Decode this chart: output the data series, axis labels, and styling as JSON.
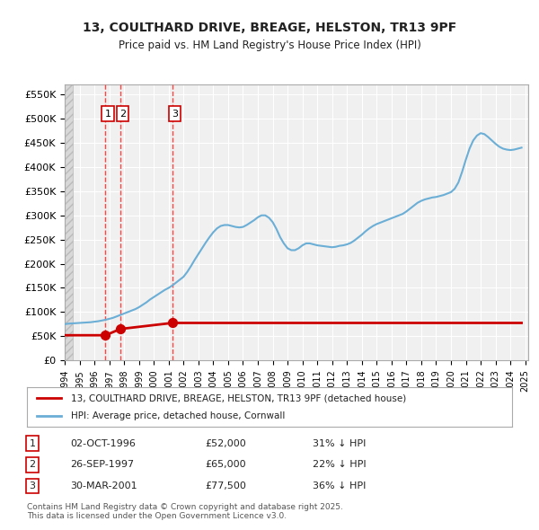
{
  "title_line1": "13, COULTHARD DRIVE, BREAGE, HELSTON, TR13 9PF",
  "title_line2": "Price paid vs. HM Land Registry's House Price Index (HPI)",
  "ylabel": "",
  "ylim": [
    0,
    570000
  ],
  "yticks": [
    0,
    50000,
    100000,
    150000,
    200000,
    250000,
    300000,
    350000,
    400000,
    450000,
    500000,
    550000
  ],
  "ytick_labels": [
    "£0",
    "£50K",
    "£100K",
    "£150K",
    "£200K",
    "£250K",
    "£300K",
    "£350K",
    "£400K",
    "£450K",
    "£500K",
    "£550K"
  ],
  "hpi_color": "#6baed6",
  "price_color": "#cc0000",
  "vline_color": "#ff4444",
  "background_color": "#ffffff",
  "plot_bg_color": "#f0f0f0",
  "grid_color": "#ffffff",
  "transaction_dates": [
    "1996-10-02",
    "1997-09-26",
    "2001-03-30"
  ],
  "transaction_prices": [
    52000,
    65000,
    77500
  ],
  "transaction_labels": [
    "1",
    "2",
    "3"
  ],
  "legend_label_price": "13, COULTHARD DRIVE, BREAGE, HELSTON, TR13 9PF (detached house)",
  "legend_label_hpi": "HPI: Average price, detached house, Cornwall",
  "table_entries": [
    {
      "num": "1",
      "date": "02-OCT-1996",
      "price": "£52,000",
      "note": "31% ↓ HPI"
    },
    {
      "num": "2",
      "date": "26-SEP-1997",
      "price": "£65,000",
      "note": "22% ↓ HPI"
    },
    {
      "num": "3",
      "date": "30-MAR-2001",
      "price": "£77,500",
      "note": "36% ↓ HPI"
    }
  ],
  "footer": "Contains HM Land Registry data © Crown copyright and database right 2025.\nThis data is licensed under the Open Government Licence v3.0.",
  "hpi_x": [
    1994.0,
    1994.25,
    1994.5,
    1994.75,
    1995.0,
    1995.25,
    1995.5,
    1995.75,
    1996.0,
    1996.25,
    1996.5,
    1996.75,
    1997.0,
    1997.25,
    1997.5,
    1997.75,
    1998.0,
    1998.25,
    1998.5,
    1998.75,
    1999.0,
    1999.25,
    1999.5,
    1999.75,
    2000.0,
    2000.25,
    2000.5,
    2000.75,
    2001.0,
    2001.25,
    2001.5,
    2001.75,
    2002.0,
    2002.25,
    2002.5,
    2002.75,
    2003.0,
    2003.25,
    2003.5,
    2003.75,
    2004.0,
    2004.25,
    2004.5,
    2004.75,
    2005.0,
    2005.25,
    2005.5,
    2005.75,
    2006.0,
    2006.25,
    2006.5,
    2006.75,
    2007.0,
    2007.25,
    2007.5,
    2007.75,
    2008.0,
    2008.25,
    2008.5,
    2008.75,
    2009.0,
    2009.25,
    2009.5,
    2009.75,
    2010.0,
    2010.25,
    2010.5,
    2010.75,
    2011.0,
    2011.25,
    2011.5,
    2011.75,
    2012.0,
    2012.25,
    2012.5,
    2012.75,
    2013.0,
    2013.25,
    2013.5,
    2013.75,
    2014.0,
    2014.25,
    2014.5,
    2014.75,
    2015.0,
    2015.25,
    2015.5,
    2015.75,
    2016.0,
    2016.25,
    2016.5,
    2016.75,
    2017.0,
    2017.25,
    2017.5,
    2017.75,
    2018.0,
    2018.25,
    2018.5,
    2018.75,
    2019.0,
    2019.25,
    2019.5,
    2019.75,
    2020.0,
    2020.25,
    2020.5,
    2020.75,
    2021.0,
    2021.25,
    2021.5,
    2021.75,
    2022.0,
    2022.25,
    2022.5,
    2022.75,
    2023.0,
    2023.25,
    2023.5,
    2023.75,
    2024.0,
    2024.25,
    2024.5,
    2024.75
  ],
  "hpi_y": [
    75000,
    76000,
    76500,
    77000,
    77500,
    78000,
    78500,
    79000,
    80000,
    81000,
    82500,
    84000,
    86000,
    88000,
    91000,
    94000,
    97000,
    100000,
    103000,
    106000,
    110000,
    115000,
    120000,
    126000,
    131000,
    136000,
    141000,
    146000,
    150000,
    155000,
    161000,
    167000,
    173000,
    183000,
    195000,
    208000,
    220000,
    232000,
    244000,
    255000,
    265000,
    273000,
    278000,
    280000,
    280000,
    278000,
    276000,
    275000,
    276000,
    280000,
    285000,
    290000,
    296000,
    300000,
    300000,
    295000,
    286000,
    272000,
    255000,
    242000,
    232000,
    228000,
    228000,
    232000,
    238000,
    242000,
    242000,
    240000,
    238000,
    237000,
    236000,
    235000,
    234000,
    235000,
    237000,
    238000,
    240000,
    243000,
    248000,
    254000,
    260000,
    267000,
    273000,
    278000,
    282000,
    285000,
    288000,
    291000,
    294000,
    297000,
    300000,
    303000,
    308000,
    314000,
    320000,
    326000,
    330000,
    333000,
    335000,
    337000,
    338000,
    340000,
    342000,
    345000,
    348000,
    355000,
    368000,
    390000,
    415000,
    438000,
    455000,
    465000,
    470000,
    468000,
    462000,
    455000,
    448000,
    442000,
    438000,
    436000,
    435000,
    436000,
    438000,
    440000
  ],
  "price_x": [
    1994.0,
    1996.75,
    1997.75,
    2001.25,
    2024.75
  ],
  "price_y": [
    52000,
    52000,
    65000,
    77500,
    77500
  ],
  "vline_x": [
    1996.75,
    1997.75,
    2001.25
  ],
  "xtick_years": [
    1994,
    1995,
    1996,
    1997,
    1998,
    1999,
    2000,
    2001,
    2002,
    2003,
    2004,
    2005,
    2006,
    2007,
    2008,
    2009,
    2010,
    2011,
    2012,
    2013,
    2014,
    2015,
    2016,
    2017,
    2018,
    2019,
    2020,
    2021,
    2022,
    2023,
    2024,
    2025
  ]
}
